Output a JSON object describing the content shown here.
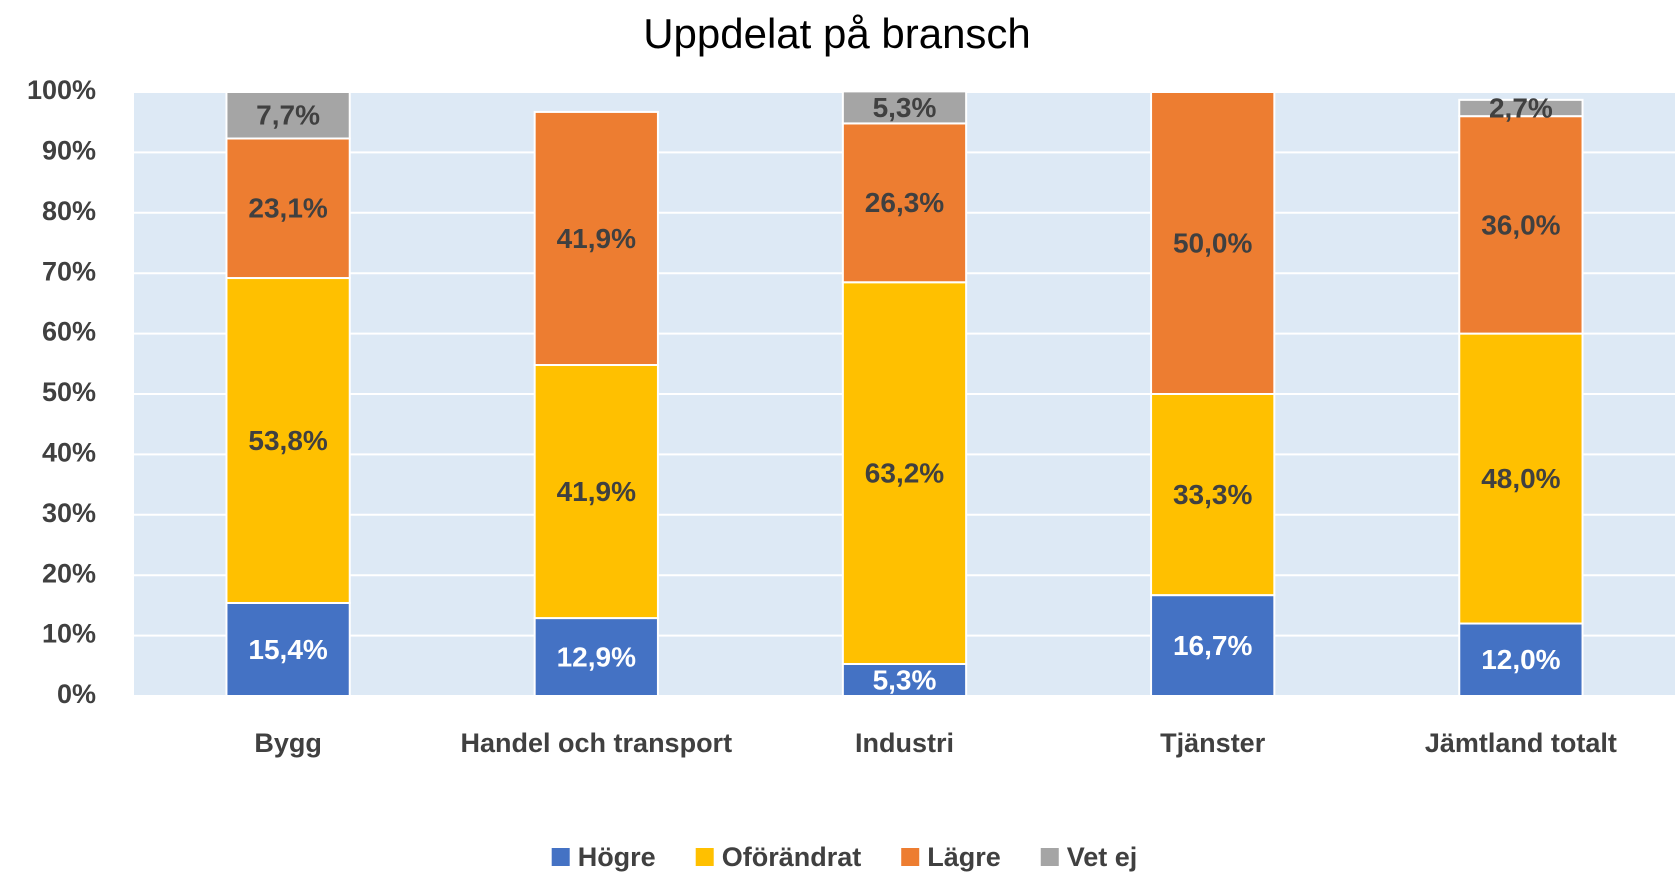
{
  "chart_data": {
    "type": "stacked_bar",
    "title": "Uppdelat på bransch",
    "categories": [
      "Bygg",
      "Handel och transport",
      "Industri",
      "Tjänster",
      "Jämtland totalt"
    ],
    "series": [
      {
        "name": "Högre",
        "color": "#4472c4",
        "label_color": "#ffffff",
        "values": [
          15.4,
          12.9,
          5.3,
          16.7,
          12.0
        ],
        "value_labels": [
          "15,4%",
          "12,9%",
          "5,3%",
          "16,7%",
          "12,0%"
        ]
      },
      {
        "name": "Oförändrat",
        "color": "#ffc000",
        "label_color": "#404040",
        "values": [
          53.8,
          41.9,
          63.2,
          33.3,
          48.0
        ],
        "value_labels": [
          "53,8%",
          "41,9%",
          "63,2%",
          "33,3%",
          "48,0%"
        ]
      },
      {
        "name": "Lägre",
        "color": "#ed7d31",
        "label_color": "#404040",
        "values": [
          23.1,
          41.9,
          26.3,
          50.0,
          36.0
        ],
        "value_labels": [
          "23,1%",
          "41,9%",
          "26,3%",
          "50,0%",
          "36,0%"
        ]
      },
      {
        "name": "Vet ej",
        "color": "#a5a5a5",
        "label_color": "#404040",
        "values": [
          7.7,
          null,
          5.3,
          null,
          2.7
        ],
        "value_labels": [
          "7,7%",
          null,
          "5,3%",
          null,
          "2,7%"
        ]
      }
    ],
    "ylim": [
      0,
      100
    ],
    "yticks": [
      {
        "value": 0,
        "label": "0%"
      },
      {
        "value": 10,
        "label": "10%"
      },
      {
        "value": 20,
        "label": "20%"
      },
      {
        "value": 30,
        "label": "30%"
      },
      {
        "value": 40,
        "label": "40%"
      },
      {
        "value": 50,
        "label": "50%"
      },
      {
        "value": 60,
        "label": "60%"
      },
      {
        "value": 70,
        "label": "70%"
      },
      {
        "value": 80,
        "label": "80%"
      },
      {
        "value": 90,
        "label": "90%"
      },
      {
        "value": 100,
        "label": "100%"
      }
    ],
    "grid": true,
    "legend": "bottom"
  }
}
